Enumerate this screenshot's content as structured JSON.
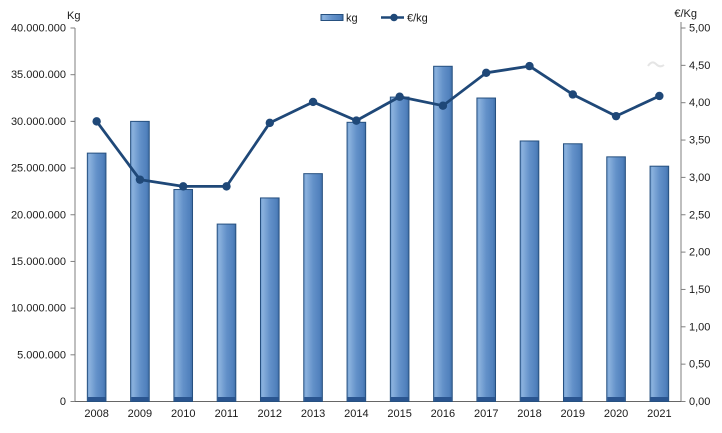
{
  "legend": {
    "items": [
      {
        "label": "kg",
        "swatch": "bar-swatch-icon"
      },
      {
        "label": "€/kg",
        "swatch": "line-marker-swatch-icon"
      }
    ]
  },
  "chart_data": {
    "type": "bar+line combo",
    "categories": [
      "2008",
      "2009",
      "2010",
      "2011",
      "2012",
      "2013",
      "2014",
      "2015",
      "2016",
      "2017",
      "2018",
      "2019",
      "2020",
      "2021"
    ],
    "series": [
      {
        "name": "kg",
        "type": "bar",
        "axis": "left",
        "values": [
          26600000,
          30000000,
          22700000,
          19000000,
          21800000,
          24400000,
          29900000,
          32600000,
          35900000,
          32500000,
          27900000,
          27600000,
          26200000,
          25200000
        ]
      },
      {
        "name": "€/kg",
        "type": "line",
        "axis": "right",
        "values": [
          3.75,
          2.97,
          2.88,
          2.88,
          3.73,
          4.01,
          3.76,
          4.08,
          3.96,
          4.4,
          4.49,
          4.11,
          3.82,
          4.09
        ]
      }
    ],
    "left_axis": {
      "label": "Kg",
      "min": 0,
      "max": 40000000,
      "step": 5000000,
      "tick_labels": [
        "40.000.000",
        "35.000.000",
        "30.000.000",
        "25.000.000",
        "20.000.000",
        "15.000.000",
        "10.000.000",
        "5.000.000",
        "0"
      ]
    },
    "right_axis": {
      "label": "€/Kg",
      "min": 0,
      "max": 5,
      "step": 0.5,
      "tick_labels": [
        "5,00",
        "4,50",
        "4,00",
        "3,50",
        "3,00",
        "2,50",
        "2,00",
        "1,50",
        "1,00",
        "0,50",
        "0,00"
      ]
    },
    "grid": false,
    "legend_position": "top-center",
    "colors": {
      "bar_fill": "#6391c9",
      "bar_fill_light": "#8ab1dd",
      "bar_fill_dark": "#3f6ea7",
      "bar_border": "#26507f",
      "bar_base": "#2a5590",
      "line": "#1f4878",
      "axis": "#7f7f7f",
      "text": "#1a1a1a"
    }
  }
}
